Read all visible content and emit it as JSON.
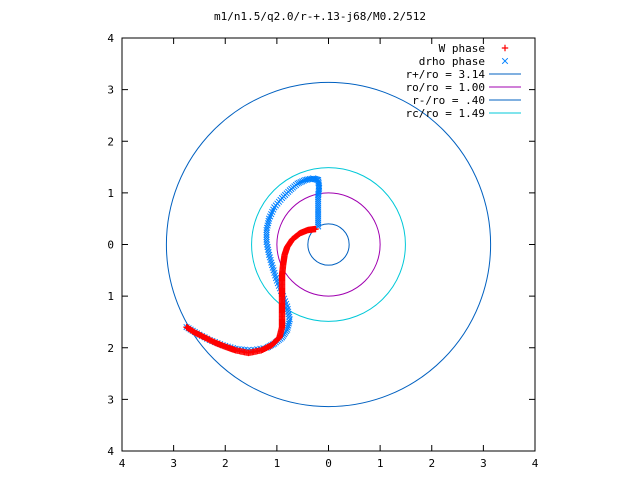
{
  "chart_data": {
    "type": "scatter",
    "title": "m1/n1.5/q2.0/r-+.13-j68/M0.2/512",
    "xlabel": "",
    "ylabel": "",
    "xlim": [
      -4,
      4
    ],
    "ylim": [
      -4,
      4
    ],
    "x_ticks": [
      -4,
      -3,
      -2,
      -1,
      0,
      1,
      2,
      3,
      4
    ],
    "y_ticks": [
      -4,
      -3,
      -2,
      -1,
      0,
      1,
      2,
      3,
      4
    ],
    "x_tick_labels": [
      "4",
      "3",
      "2",
      "1",
      "0",
      "1",
      "2",
      "3",
      "4"
    ],
    "y_tick_labels": [
      "4",
      "3",
      "2",
      "1",
      "0",
      "1",
      "2",
      "3",
      "4"
    ],
    "grid": false,
    "legend_position": "top-right",
    "series": [
      {
        "name": "W phase",
        "kind": "points",
        "marker": "+",
        "color": "#ff0000",
        "points": [
          [
            -0.25,
            0.3
          ],
          [
            -0.4,
            0.28
          ],
          [
            -0.55,
            0.22
          ],
          [
            -0.7,
            0.1
          ],
          [
            -0.8,
            -0.05
          ],
          [
            -0.85,
            -0.2
          ],
          [
            -0.88,
            -0.4
          ],
          [
            -0.9,
            -0.6
          ],
          [
            -0.9,
            -0.8
          ],
          [
            -0.9,
            -1.0
          ],
          [
            -0.9,
            -1.2
          ],
          [
            -0.9,
            -1.4
          ],
          [
            -0.9,
            -1.6
          ],
          [
            -0.95,
            -1.8
          ],
          [
            -1.1,
            -1.95
          ],
          [
            -1.3,
            -2.05
          ],
          [
            -1.55,
            -2.1
          ],
          [
            -1.8,
            -2.05
          ],
          [
            -2.0,
            -1.98
          ],
          [
            -2.2,
            -1.9
          ],
          [
            -2.4,
            -1.8
          ],
          [
            -2.6,
            -1.7
          ],
          [
            -2.75,
            -1.6
          ]
        ]
      },
      {
        "name": "drho phase",
        "kind": "points",
        "marker": "x",
        "color": "#0080ff",
        "points": [
          [
            -0.2,
            0.35
          ],
          [
            -0.2,
            0.55
          ],
          [
            -0.2,
            0.75
          ],
          [
            -0.2,
            0.95
          ],
          [
            -0.18,
            1.1
          ],
          [
            -0.2,
            1.25
          ],
          [
            -0.3,
            1.28
          ],
          [
            -0.45,
            1.25
          ],
          [
            -0.6,
            1.18
          ],
          [
            -0.75,
            1.05
          ],
          [
            -0.9,
            0.9
          ],
          [
            -1.05,
            0.72
          ],
          [
            -1.15,
            0.5
          ],
          [
            -1.2,
            0.28
          ],
          [
            -1.2,
            0.05
          ],
          [
            -1.15,
            -0.2
          ],
          [
            -1.08,
            -0.45
          ],
          [
            -1.0,
            -0.7
          ],
          [
            -0.9,
            -0.95
          ],
          [
            -0.8,
            -1.2
          ],
          [
            -0.75,
            -1.45
          ],
          [
            -0.8,
            -1.65
          ],
          [
            -0.9,
            -1.8
          ],
          [
            -1.05,
            -1.92
          ],
          [
            -1.2,
            -2.0
          ],
          [
            -1.5,
            -2.05
          ],
          [
            -1.8,
            -2.02
          ],
          [
            -2.05,
            -1.95
          ],
          [
            -2.3,
            -1.85
          ],
          [
            -2.55,
            -1.72
          ],
          [
            -2.75,
            -1.6
          ]
        ]
      },
      {
        "name": "r+/ro = 3.14",
        "kind": "circle",
        "radius": 3.14,
        "color": "#0060c0"
      },
      {
        "name": "ro/ro = 1.00",
        "kind": "circle",
        "radius": 1.0,
        "color": "#a000b0"
      },
      {
        "name": "r-/ro = .40",
        "kind": "circle",
        "radius": 0.4,
        "color": "#0060c0"
      },
      {
        "name": "rc/ro = 1.49",
        "kind": "circle",
        "radius": 1.49,
        "color": "#00c8d8"
      }
    ]
  }
}
